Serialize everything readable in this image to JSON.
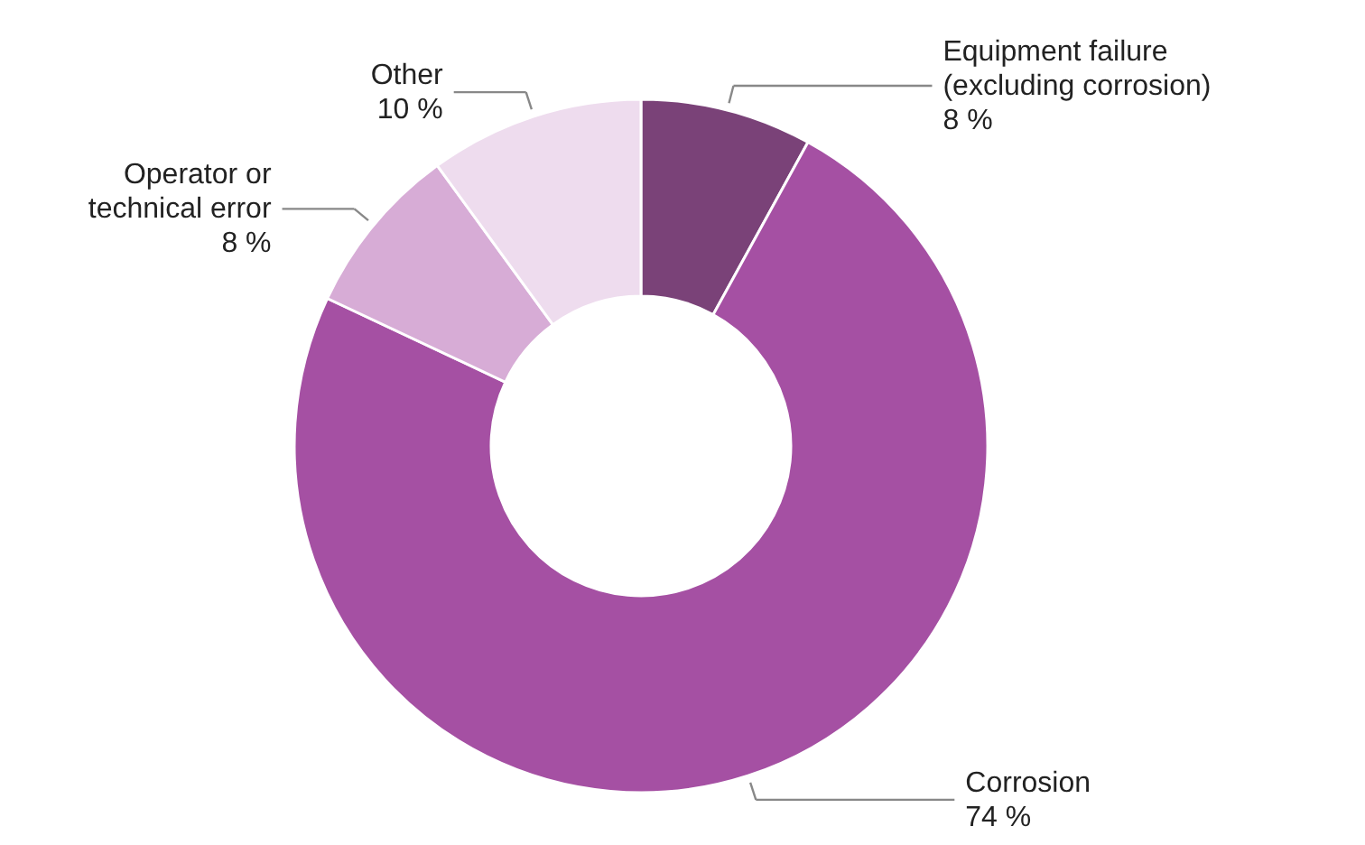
{
  "chart_data": {
    "type": "donut",
    "categories": [
      "Equipment failure\n(excluding corrosion)",
      "Corrosion",
      "Operator or\ntechnical error",
      "Other"
    ],
    "values": [
      8,
      74,
      8,
      10
    ],
    "value_labels": [
      "8 %",
      "74 %",
      "8 %",
      "10 %"
    ],
    "colors": [
      "#7a4278",
      "#a550a3",
      "#d7acd6",
      "#eedcee"
    ]
  }
}
